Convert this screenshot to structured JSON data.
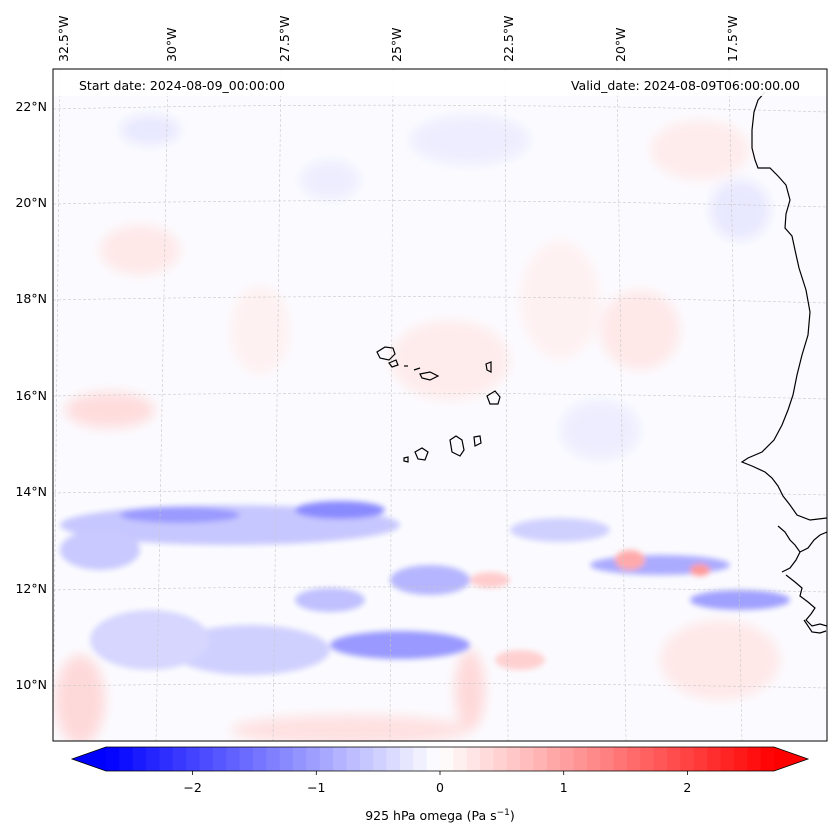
{
  "map": {
    "start_date": "Start date: 2024-08-09_00:00:00",
    "valid_date": "Valid_date: 2024-08-09T06:00:00.00",
    "lon_labels": [
      "32.5°W",
      "30°W",
      "27.5°W",
      "25°W",
      "22.5°W",
      "20°W",
      "17.5°W"
    ],
    "lat_labels": [
      "22°N",
      "20°N",
      "18°N",
      "16°N",
      "14°N",
      "12°N",
      "10°N"
    ],
    "colormap": "bwr",
    "coastline_color": "#000000",
    "gridlines": true
  },
  "colorbar": {
    "label": "925 hPa omega (Pa s",
    "label_sup": "−1",
    "label_close": ")",
    "ticks": [
      "−2",
      "−1",
      "0",
      "1",
      "2"
    ],
    "tick_values": [
      -2,
      -1,
      0,
      1,
      2
    ],
    "range": [
      -2.7,
      2.7
    ],
    "extend": "both",
    "colors": {
      "low": "#0000ff",
      "mid": "#ffffff",
      "high": "#ff0000"
    }
  }
}
